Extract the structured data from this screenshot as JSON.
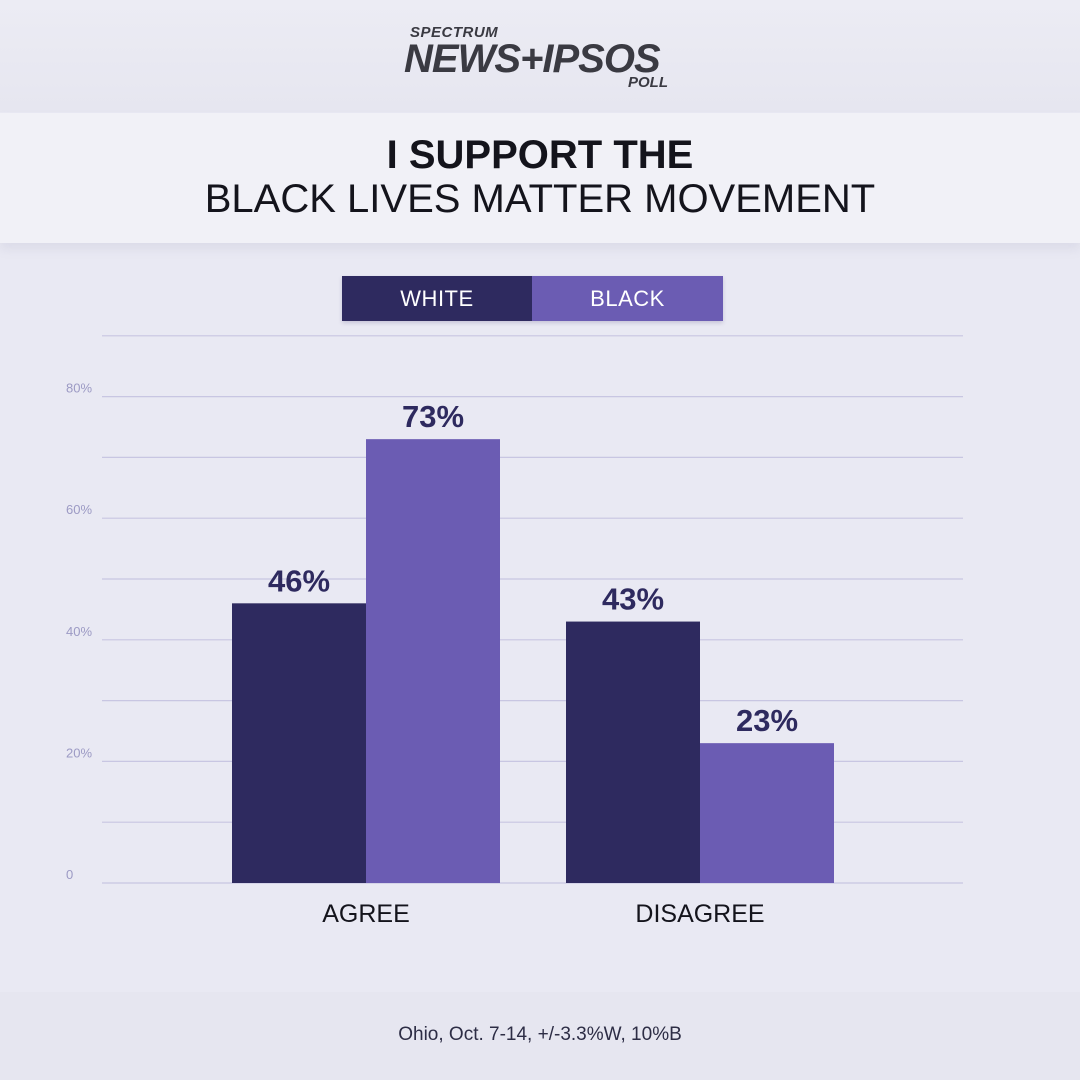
{
  "brand": {
    "top": "SPECTRUM",
    "main": "NEWS+IPSOS",
    "bottom": "POLL"
  },
  "colors": {
    "white_series": "#2e2a5f",
    "black_series": "#6b5cb3",
    "label_text": "#2e2a5f",
    "gridline": "#c8c6e2"
  },
  "chart_data": {
    "type": "bar",
    "title_line1": "I SUPPORT THE",
    "title_line2": "BLACK LIVES MATTER MOVEMENT",
    "categories": [
      "AGREE",
      "DISAGREE"
    ],
    "series": [
      {
        "name": "WHITE",
        "values": [
          46,
          43
        ],
        "labels": [
          "46%",
          "43%"
        ]
      },
      {
        "name": "BLACK",
        "values": [
          73,
          23
        ],
        "labels": [
          "73%",
          "23%"
        ]
      }
    ],
    "y_ticks": [
      {
        "value": 0,
        "label": "0"
      },
      {
        "value": 20,
        "label": "20%"
      },
      {
        "value": 40,
        "label": "40%"
      },
      {
        "value": 60,
        "label": "60%"
      },
      {
        "value": 80,
        "label": "80%"
      }
    ],
    "ylim": [
      0,
      90
    ],
    "gridline_step": 10,
    "legend": "top-center",
    "grid": true,
    "source": "Ohio, Oct. 7-14, +/-3.3%W, 10%B"
  }
}
